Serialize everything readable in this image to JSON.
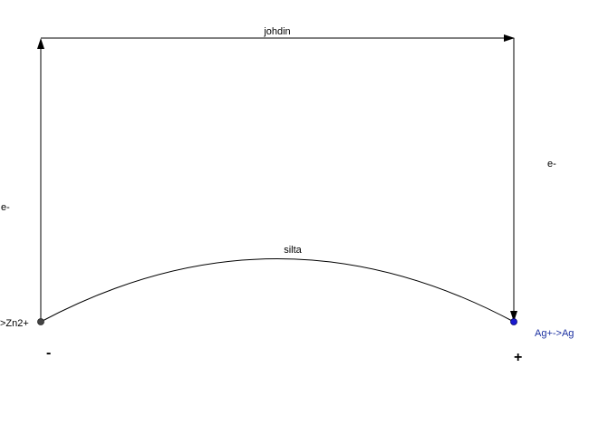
{
  "labels": {
    "wire": "johdin",
    "bridge": "silta",
    "electron_left": "e-",
    "electron_right": "e-",
    "anode_reaction": ">Zn2+",
    "cathode_reaction": "Ag+->Ag",
    "anode_sign": "-",
    "cathode_sign": "+"
  },
  "colors": {
    "line": "#000000",
    "anode_point": "#444444",
    "cathode_point": "#1a1ad0",
    "cathode_label": "#1a2fa0"
  }
}
